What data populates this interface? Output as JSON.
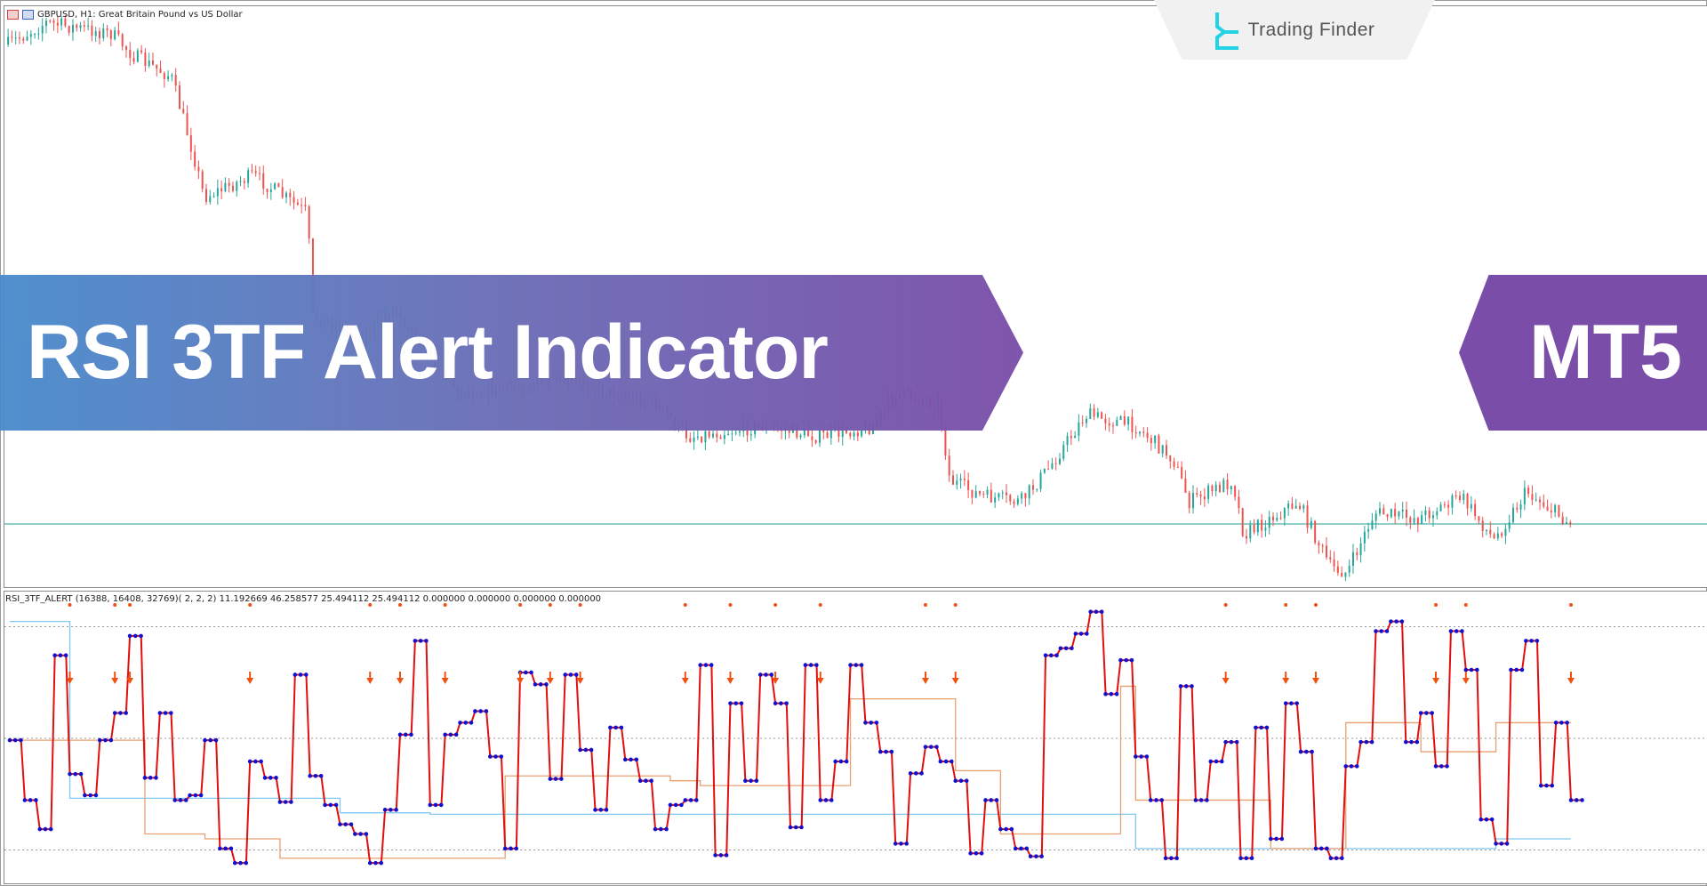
{
  "chart_header": {
    "symbol_title": "GBPUSD, H1:  Great Britain Pound vs US Dollar"
  },
  "indicator_header": {
    "label": "RSI_3TF_ALERT  (16388, 16408, 32769)( 2, 2, 2)   11.192669 46.258577 25.494112 25.494112 0.000000 0.000000 0.000000 0.000000"
  },
  "logo": {
    "text": "Trading Finder",
    "icon": "trading-finder-logo-icon",
    "color": "#22d3e6"
  },
  "banner": {
    "title": "RSI 3TF Alert Indicator",
    "platform": "MT5"
  },
  "colors": {
    "bull_candle": "#26a69a",
    "bear_candle": "#ef5350",
    "rsi_line": "#e01010",
    "rsi_points": "#1010d0",
    "tf2_line": "#e8a070",
    "tf3_line": "#80c8f0",
    "signal": "#f05010",
    "price_level": "#20a090"
  },
  "chart_data": {
    "type": "line",
    "title": "",
    "rsi_levels": [
      80,
      50,
      20
    ],
    "rsi_current_tf": [
      49.5,
      33.4,
      25.6,
      72.3,
      40.4,
      34.7,
      49.5,
      56.8,
      77.5,
      39.4,
      56.8,
      33.4,
      34.7,
      49.5,
      20.4,
      16.5,
      43.8,
      39.4,
      32.9,
      67.1,
      39.9,
      32.1,
      26.9,
      24.3,
      16.5,
      30.8,
      51,
      76.2,
      32.1,
      51,
      54.2,
      57.3,
      45.1,
      20.4,
      67.7,
      64.5,
      39.1,
      67.1,
      46.9,
      30.8,
      52.9,
      44.3,
      38.6,
      25.6,
      32.1,
      33.4,
      69.7,
      18.6,
      59.4,
      38.6,
      67.1,
      59.4,
      26.1,
      69.7,
      33.4,
      43.8,
      69.7,
      54.2,
      46.4,
      21.7,
      40.6,
      47.7,
      43.8,
      38.6,
      19.1,
      33.4,
      25.6,
      20.4,
      18.3,
      72.3,
      74.2,
      78.1,
      84,
      61.9,
      71,
      45.1,
      33.4,
      17.8,
      64,
      33.4,
      43.8,
      49,
      17.8,
      52.9,
      23,
      59.4,
      46.4,
      20.4,
      17.8,
      42.5,
      49,
      78.8,
      81.4,
      49,
      56.8,
      42.5,
      78.8,
      68.4,
      28.2,
      21.7,
      68.4,
      76.2,
      37.3,
      54.2,
      33.4
    ],
    "rsi_tf2_steps": [
      [
        0,
        49.5
      ],
      [
        9,
        24.3
      ],
      [
        13,
        23
      ],
      [
        18,
        17.8
      ],
      [
        33,
        39.9
      ],
      [
        44,
        38.6
      ],
      [
        46,
        37.3
      ],
      [
        56,
        60.6
      ],
      [
        63,
        41.3
      ],
      [
        66,
        24.3
      ],
      [
        74,
        64
      ],
      [
        75,
        33.4
      ],
      [
        84,
        20.4
      ],
      [
        89,
        54.2
      ],
      [
        94,
        46.4
      ],
      [
        99,
        54.2
      ]
    ],
    "rsi_tf3_steps": [
      [
        0,
        81.4
      ],
      [
        4,
        33.9
      ],
      [
        22,
        30
      ],
      [
        28,
        29.6
      ],
      [
        75,
        20.4
      ],
      [
        99,
        23
      ]
    ],
    "sell_signal_bars": [
      4,
      7,
      8,
      16,
      24,
      26,
      29,
      34,
      36,
      38,
      45,
      48,
      51,
      54,
      61,
      63,
      81,
      85,
      87,
      95,
      97,
      104
    ]
  }
}
